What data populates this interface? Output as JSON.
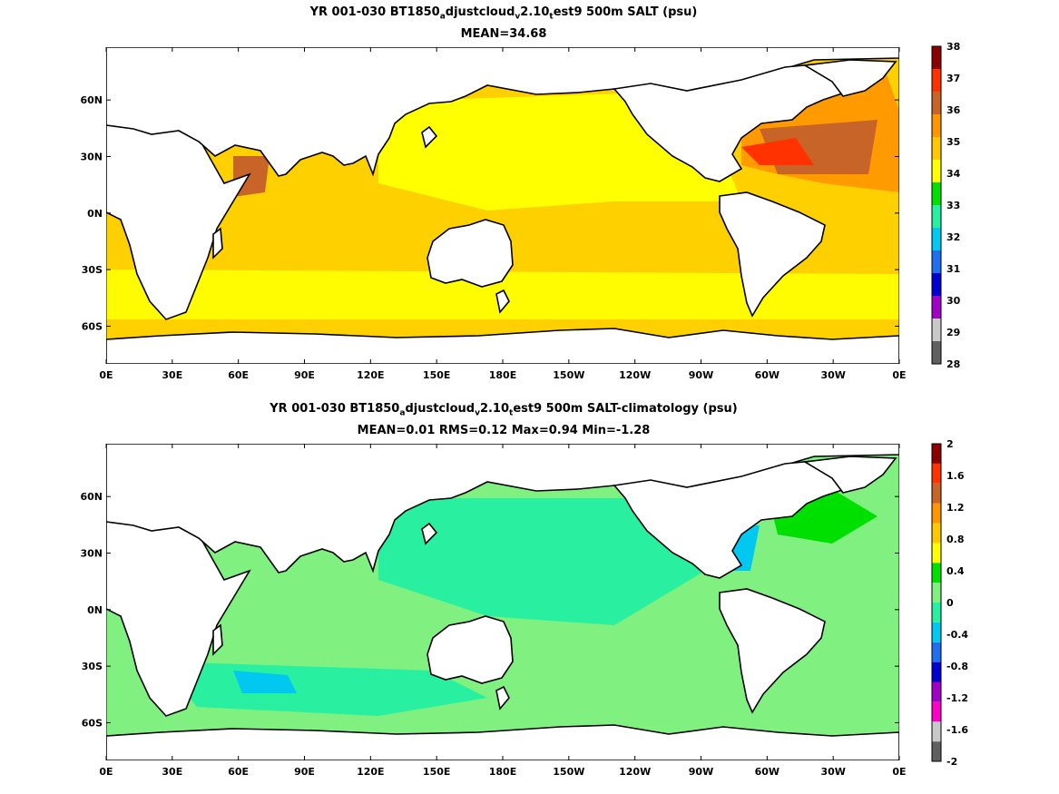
{
  "panels": [
    {
      "title_line1_parts": [
        "YR 001-030 BT1850",
        "a",
        "djustcloud",
        "v",
        "2.10",
        "t",
        "est9 500m SALT (psu)"
      ],
      "title_line2": "MEAN=34.68",
      "colorbar_labels": [
        "28",
        "29",
        "30",
        "31",
        "32",
        "33",
        "34",
        "35",
        "36",
        "37",
        "38"
      ],
      "colorbar_colors": [
        "#606060",
        "#c8c8c8",
        "#a000c8",
        "#0000d0",
        "#1e6ef0",
        "#00c8f0",
        "#28f0a0",
        "#00e000",
        "#ffff00",
        "#ffc800",
        "#ff9600",
        "#c86428",
        "#ff3200",
        "#8c0000"
      ]
    },
    {
      "title_line1_parts": [
        "YR 001-030 BT1850",
        "a",
        "djustcloud",
        "v",
        "2.10",
        "t",
        "est9 500m SALT-climatology (psu)"
      ],
      "title_line2": "MEAN=0.01   RMS=0.12   Max=0.94   Min=-1.28",
      "colorbar_labels": [
        "2",
        "1.6",
        "1.2",
        "0.8",
        "0.4",
        "0",
        "-0.4",
        "-0.8",
        "-1.2",
        "-1.6",
        "-2"
      ],
      "colorbar_colors": [
        "#606060",
        "#c8c8c8",
        "#ff00c8",
        "#a000c8",
        "#0000d0",
        "#1e6ef0",
        "#00c8f0",
        "#28f0a0",
        "#80f080",
        "#00e000",
        "#ffff00",
        "#ffc800",
        "#ff9600",
        "#c86428",
        "#ff3200",
        "#8c0000"
      ]
    }
  ],
  "x_ticks": [
    "0E",
    "30E",
    "60E",
    "90E",
    "120E",
    "150E",
    "180E",
    "150W",
    "120W",
    "90W",
    "60W",
    "30W",
    "0E"
  ],
  "y_ticks": [
    "60N",
    "30N",
    "0N",
    "30S",
    "60S"
  ],
  "colors": {
    "salt_base": "#ffd000",
    "salt_low": "#ffff00",
    "salt_mid": "#ff9a00",
    "salt_high": "#c86428",
    "salt_max": "#ff3200",
    "salt_med": "#8c0000",
    "anom_base": "#80f080",
    "anom_neg": "#28f0a0",
    "anom_neg2": "#00c8f0",
    "anom_pos": "#00e000",
    "land": "#ffffff",
    "coast": "#000000"
  }
}
